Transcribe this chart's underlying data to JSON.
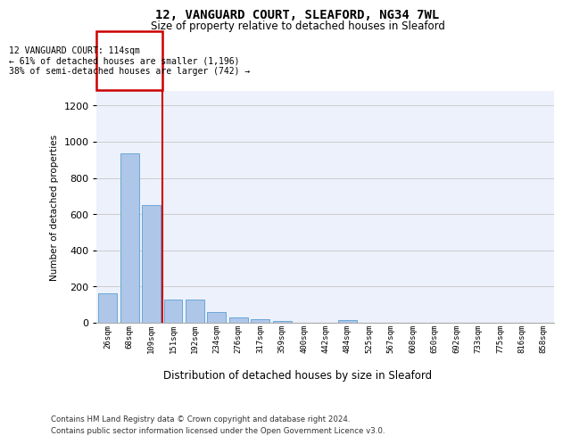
{
  "title1": "12, VANGUARD COURT, SLEAFORD, NG34 7WL",
  "title2": "Size of property relative to detached houses in Sleaford",
  "xlabel": "Distribution of detached houses by size in Sleaford",
  "ylabel": "Number of detached properties",
  "categories": [
    "26sqm",
    "68sqm",
    "109sqm",
    "151sqm",
    "192sqm",
    "234sqm",
    "276sqm",
    "317sqm",
    "359sqm",
    "400sqm",
    "442sqm",
    "484sqm",
    "525sqm",
    "567sqm",
    "608sqm",
    "650sqm",
    "692sqm",
    "733sqm",
    "775sqm",
    "816sqm",
    "858sqm"
  ],
  "values": [
    163,
    937,
    648,
    130,
    130,
    57,
    30,
    18,
    10,
    0,
    0,
    15,
    0,
    0,
    0,
    0,
    0,
    0,
    0,
    0,
    0
  ],
  "bar_color": "#aec6e8",
  "bar_edge_color": "#5a9fd4",
  "grid_color": "#cccccc",
  "annotation_line_index": 2.5,
  "annotation_box_text": "12 VANGUARD COURT: 114sqm\n← 61% of detached houses are smaller (1,196)\n38% of semi-detached houses are larger (742) →",
  "annotation_box_edge_color": "#cc0000",
  "footnote1": "Contains HM Land Registry data © Crown copyright and database right 2024.",
  "footnote2": "Contains public sector information licensed under the Open Government Licence v3.0.",
  "ylim": [
    0,
    1280
  ],
  "yticks": [
    0,
    200,
    400,
    600,
    800,
    1000,
    1200
  ],
  "background_color": "#edf1fb"
}
